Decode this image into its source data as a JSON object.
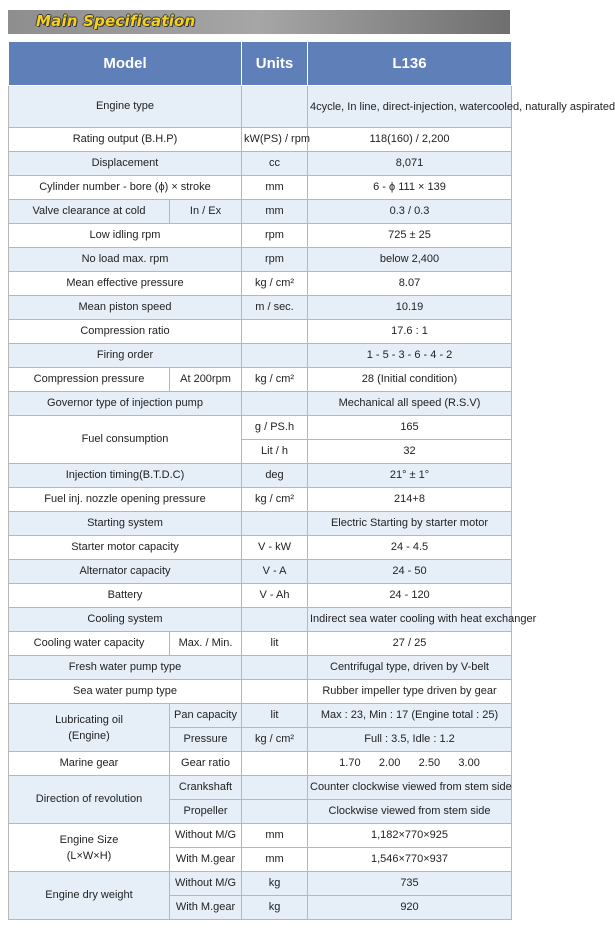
{
  "banner": {
    "title": "Main Specification"
  },
  "header": {
    "model": "Model",
    "units": "Units",
    "l136": "L136"
  },
  "rows": {
    "engine_type": {
      "label": "Engine type",
      "value": "4cycle, In line, direct-injection, watercooled, naturally aspirated"
    },
    "rating_output": {
      "label": "Rating output (B.H.P)",
      "unit": "kW(PS) / rpm",
      "value": "118(160) / 2,200"
    },
    "displacement": {
      "label": "Displacement",
      "unit": "cc",
      "value": "8,071"
    },
    "cylinder": {
      "label": "Cylinder number - bore (ϕ) × stroke",
      "unit": "mm",
      "value": "6 - ϕ 111 × 139"
    },
    "valve": {
      "label": "Valve clearance at cold",
      "sub": "In / Ex",
      "unit": "mm",
      "value": "0.3 / 0.3"
    },
    "low_idling": {
      "label": "Low idling rpm",
      "unit": "rpm",
      "value": "725 ± 25"
    },
    "no_load": {
      "label": "No load max. rpm",
      "unit": "rpm",
      "value": "below 2,400"
    },
    "mep": {
      "label": "Mean effective pressure",
      "unit": "kg / cm²",
      "value": "8.07"
    },
    "piston_speed": {
      "label": "Mean piston speed",
      "unit": "m / sec.",
      "value": "10.19"
    },
    "compression_ratio": {
      "label": "Compression ratio",
      "value": "17.6 : 1"
    },
    "firing_order": {
      "label": "Firing order",
      "value": "1 - 5 - 3 - 6 - 4 - 2"
    },
    "compression_pressure": {
      "label": "Compression pressure",
      "sub": "At 200rpm",
      "unit": "kg /  cm²",
      "value": "28 (Initial condition)"
    },
    "governor": {
      "label": "Governor type of  injection pump",
      "value": "Mechanical all speed (R.S.V)"
    },
    "fuel": {
      "label": "Fuel consumption",
      "unit1": "g / PS.h",
      "value1": "165",
      "unit2": "Lit / h",
      "value2": "32"
    },
    "injection_timing": {
      "label": "Injection timing(B.T.D.C)",
      "unit": "deg",
      "value": "21° ± 1°"
    },
    "nozzle": {
      "label": "Fuel inj. nozzle opening pressure",
      "unit": "kg / cm²",
      "value": "214+8"
    },
    "starting": {
      "label": "Starting system",
      "value": "Electric Starting by starter motor"
    },
    "starter": {
      "label": "Starter motor capacity",
      "unit": "V - kW",
      "value": "24  -  4.5"
    },
    "alternator": {
      "label": "Alternator capacity",
      "unit": "V - A",
      "value": "24  -  50"
    },
    "battery": {
      "label": "Battery",
      "unit": "V - Ah",
      "value": "24  -  120"
    },
    "cooling": {
      "label": "Cooling system",
      "value": "Indirect sea water cooling with heat exchanger"
    },
    "cooling_water": {
      "label": "Cooling water capacity",
      "sub": "Max. / Min.",
      "unit": "lit",
      "value": "27 / 25"
    },
    "fresh_pump": {
      "label": "Fresh water pump type",
      "value": "Centrifugal type, driven by V-belt"
    },
    "sea_pump": {
      "label": "Sea water pump type",
      "value": "Rubber impeller type driven by gear"
    },
    "lub": {
      "label_line1": "Lubricating oil",
      "label_line2": "(Engine)",
      "sub1": "Pan capacity",
      "unit1": "lit",
      "value1": "Max : 23,  Min : 17  (Engine total : 25)",
      "sub2": "Pressure",
      "unit2": "kg / cm²",
      "value2": "Full : 3.5,    Idle : 1.2"
    },
    "marine_gear": {
      "label": "Marine gear",
      "sub": "Gear ratio",
      "value": "1.70      2.00      2.50      3.00"
    },
    "direction": {
      "label": "Direction of revolution",
      "sub1": "Crankshaft",
      "value1": "Counter clockwise viewed from stem side",
      "sub2": "Propeller",
      "value2": "Clockwise viewed from stem side"
    },
    "engine_size": {
      "label_line1": "Engine Size",
      "label_line2": "(L×W×H)",
      "sub1": "Without M/G",
      "unit1": "mm",
      "value1": "1,182×770×925",
      "sub2": "With M.gear",
      "unit2": "mm",
      "value2": "1,546×770×937"
    },
    "dry_weight": {
      "label": "Engine dry weight",
      "sub1": "Without M/G",
      "unit1": "kg",
      "value1": "735",
      "sub2": "With M.gear",
      "unit2": "kg",
      "value2": "920"
    }
  }
}
